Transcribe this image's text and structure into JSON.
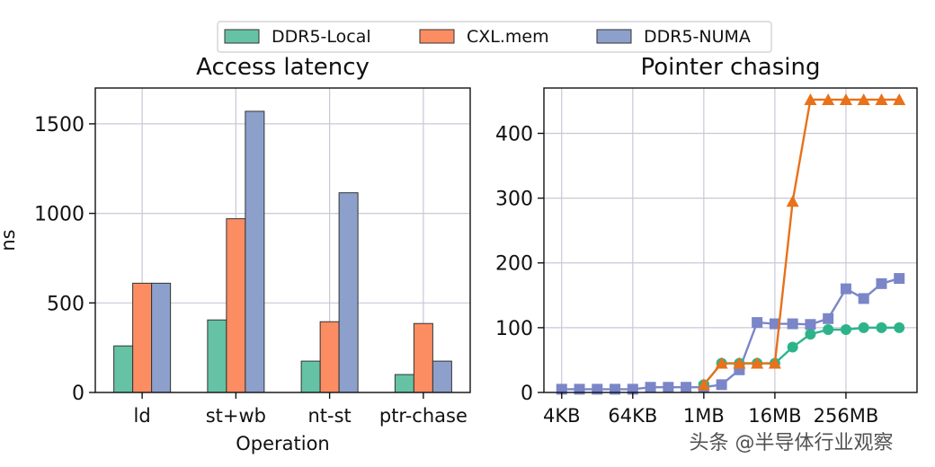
{
  "legend": {
    "items": [
      {
        "label": "DDR5-Local",
        "color": "#66c2a5"
      },
      {
        "label": "CXL.mem",
        "color": "#fc8d62"
      },
      {
        "label": "DDR5-NUMA",
        "color": "#8da0cb"
      }
    ]
  },
  "chart_data": [
    {
      "type": "bar",
      "title": "Access latency",
      "xlabel": "Operation",
      "ylabel": "ns",
      "ylim": [
        0,
        1700
      ],
      "yticks": [
        0,
        500,
        1000,
        1500
      ],
      "ytick_labels": [
        "0",
        "500",
        "1000",
        "1500"
      ],
      "categories": [
        "ld",
        "st+wb",
        "nt-st",
        "ptr-chase"
      ],
      "grid": true,
      "series": [
        {
          "name": "DDR5-Local",
          "color": "#66c2a5",
          "values": [
            260,
            405,
            175,
            100
          ]
        },
        {
          "name": "CXL.mem",
          "color": "#fc8d62",
          "values": [
            610,
            970,
            395,
            385
          ]
        },
        {
          "name": "DDR5-NUMA",
          "color": "#8da0cb",
          "values": [
            610,
            1570,
            1115,
            175
          ]
        }
      ]
    },
    {
      "type": "line",
      "title": "Pointer chasing",
      "xlabel": "",
      "ylabel": "",
      "ylim": [
        0,
        470
      ],
      "yticks": [
        0,
        100,
        200,
        300,
        400
      ],
      "ytick_labels": [
        "0",
        "100",
        "200",
        "300",
        "400"
      ],
      "xtick_labels": [
        "4KB",
        "64KB",
        "1MB",
        "16MB",
        "256MB"
      ],
      "xtick_pos": [
        1,
        5,
        9,
        13,
        17
      ],
      "xlim": [
        0,
        21
      ],
      "grid": true,
      "series": [
        {
          "name": "DDR5-Local",
          "color": "#2db38a",
          "marker": "circle",
          "x": [
            9,
            10,
            11,
            12,
            13,
            14,
            15,
            16,
            17,
            18,
            19,
            20
          ],
          "y": [
            12,
            45,
            45,
            45,
            45,
            70,
            90,
            97,
            97,
            100,
            100,
            100
          ]
        },
        {
          "name": "CXL.mem",
          "color": "#e8711a",
          "marker": "triangle",
          "x": [
            9,
            10,
            11,
            12,
            13,
            14,
            15,
            16,
            17,
            18,
            19,
            20
          ],
          "y": [
            12,
            45,
            45,
            45,
            45,
            295,
            452,
            452,
            452,
            452,
            452,
            452
          ]
        },
        {
          "name": "DDR5-NUMA",
          "color": "#7a86c8",
          "marker": "square",
          "x": [
            1,
            2,
            3,
            4,
            5,
            6,
            7,
            8,
            9,
            10,
            11,
            12,
            13,
            14,
            15,
            16,
            17,
            18,
            19,
            20
          ],
          "y": [
            5,
            5,
            5,
            5,
            5,
            8,
            8,
            8,
            8,
            12,
            35,
            108,
            106,
            106,
            105,
            114,
            160,
            145,
            168,
            176
          ]
        }
      ]
    }
  ],
  "watermark": {
    "text": "头条 @半导体行业观察"
  }
}
